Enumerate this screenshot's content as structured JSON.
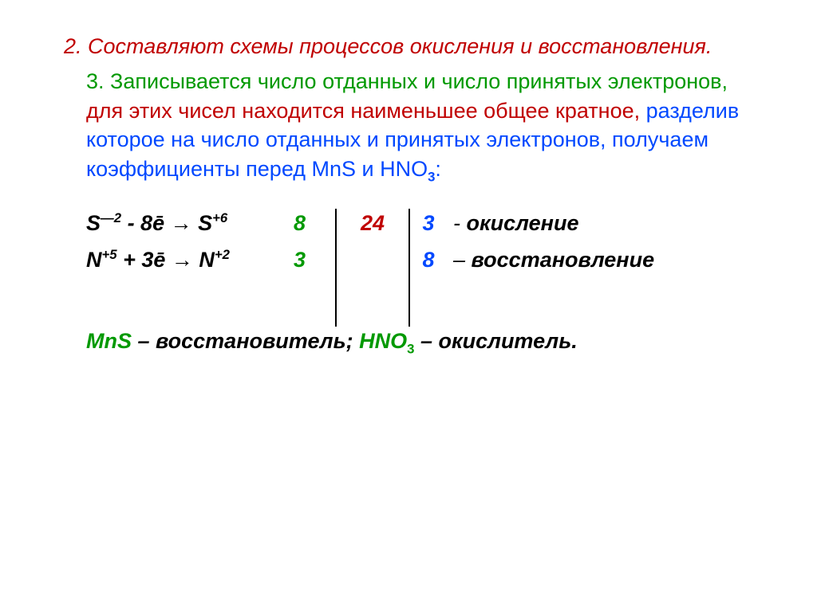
{
  "step2": {
    "num": "2.",
    "text": "Составляют схемы процессов окисления и восстановления."
  },
  "step3": {
    "num": "3.",
    "green1": "Записывается число отданных и число принятых электронов,",
    "red1": "для этих чисел находится наименьшее общее кратное,",
    "blue1": "разделив которое на число отданных и принятых электронов, получаем коэффициенты перед MnS  и  HNO",
    "blue_sub": "3",
    "blue2": ":"
  },
  "balance": {
    "row1": {
      "species1": "S",
      "ox1": "—2",
      "op": " - 8ē → ",
      "species2": "S",
      "ox2": "+6",
      "e": "8",
      "lcm": "24",
      "coef": "3",
      "dash": " - ",
      "label": "окисление"
    },
    "row2": {
      "species1": "N",
      "ox1": "+5",
      "op": " + 3ē → ",
      "species2": "N",
      "ox2": "+2",
      "e": "3",
      "lcm": "",
      "coef": "8",
      "dash": " – ",
      "label": "восстановление"
    }
  },
  "summary": {
    "f1": "MnS",
    "t1": " – восстановитель; ",
    "f2": "HNO",
    "f2sub": "3",
    "t2": " – окислитель."
  },
  "colors": {
    "red": "#c00000",
    "green": "#009900",
    "blue": "#0048ff",
    "black": "#000000"
  }
}
